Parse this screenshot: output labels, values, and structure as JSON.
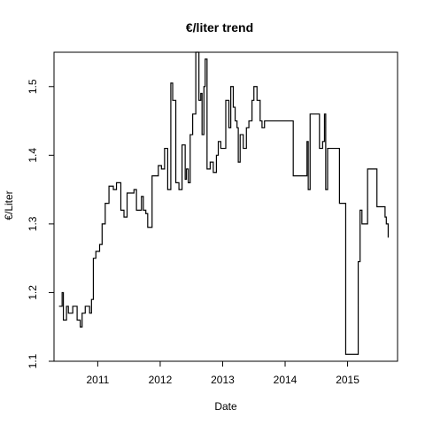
{
  "chart_data": {
    "type": "line",
    "step": true,
    "title": "€/liter trend",
    "xlabel": "Date",
    "ylabel": "€/Liter",
    "xlim": [
      2010.3,
      2015.8
    ],
    "ylim": [
      1.1,
      1.55
    ],
    "x_ticks": [
      2011,
      2012,
      2013,
      2014,
      2015
    ],
    "x_tick_labels": [
      "2011",
      "2012",
      "2013",
      "2014",
      "2015"
    ],
    "y_ticks": [
      1.1,
      1.2,
      1.3,
      1.4,
      1.5
    ],
    "y_tick_labels": [
      "1.1",
      "1.2",
      "1.3",
      "1.4",
      "1.5"
    ],
    "series": [
      {
        "x": [
          2010.38,
          2010.43,
          2010.45,
          2010.5,
          2010.53,
          2010.6,
          2010.67,
          2010.72,
          2010.75,
          2010.8,
          2010.87,
          2010.9,
          2010.93,
          2010.97,
          2011.03,
          2011.07,
          2011.12,
          2011.18,
          2011.25,
          2011.3,
          2011.37,
          2011.42,
          2011.47,
          2011.52,
          2011.58,
          2011.62,
          2011.7,
          2011.73,
          2011.77,
          2011.8,
          2011.87,
          2011.97,
          2012.02,
          2012.07,
          2012.12,
          2012.17,
          2012.2,
          2012.25,
          2012.3,
          2012.35,
          2012.4,
          2012.42,
          2012.45,
          2012.48,
          2012.52,
          2012.57,
          2012.62,
          2012.65,
          2012.67,
          2012.7,
          2012.72,
          2012.75,
          2012.8,
          2012.85,
          2012.9,
          2012.93,
          2012.97,
          2013.05,
          2013.1,
          2013.13,
          2013.17,
          2013.2,
          2013.23,
          2013.25,
          2013.28,
          2013.33,
          2013.38,
          2013.42,
          2013.47,
          2013.5,
          2013.55,
          2013.6,
          2013.63,
          2013.67,
          2013.7,
          2014.13,
          2014.23,
          2014.35,
          2014.37,
          2014.4,
          2014.5,
          2014.55,
          2014.6,
          2014.63,
          2014.65,
          2014.68,
          2014.72,
          2014.77,
          2014.87,
          2014.97,
          2015.12,
          2015.17,
          2015.2,
          2015.23,
          2015.32,
          2015.47,
          2015.6,
          2015.62,
          2015.65
        ],
        "values": [
          1.18,
          1.2,
          1.16,
          1.18,
          1.17,
          1.18,
          1.16,
          1.15,
          1.17,
          1.18,
          1.17,
          1.19,
          1.25,
          1.26,
          1.27,
          1.3,
          1.33,
          1.355,
          1.35,
          1.36,
          1.32,
          1.31,
          1.345,
          1.345,
          1.35,
          1.32,
          1.34,
          1.32,
          1.315,
          1.295,
          1.37,
          1.385,
          1.38,
          1.41,
          1.35,
          1.505,
          1.48,
          1.36,
          1.35,
          1.415,
          1.365,
          1.38,
          1.36,
          1.43,
          1.46,
          1.55,
          1.48,
          1.49,
          1.43,
          1.5,
          1.54,
          1.38,
          1.39,
          1.375,
          1.4,
          1.42,
          1.41,
          1.48,
          1.44,
          1.5,
          1.47,
          1.45,
          1.44,
          1.39,
          1.43,
          1.41,
          1.44,
          1.45,
          1.48,
          1.5,
          1.48,
          1.45,
          1.44,
          1.45,
          1.45,
          1.37,
          1.37,
          1.42,
          1.35,
          1.46,
          1.46,
          1.41,
          1.42,
          1.46,
          1.35,
          1.41,
          1.41,
          1.41,
          1.33,
          1.11,
          1.11,
          1.245,
          1.32,
          1.3,
          1.38,
          1.325,
          1.31,
          1.3,
          1.28
        ]
      }
    ]
  }
}
